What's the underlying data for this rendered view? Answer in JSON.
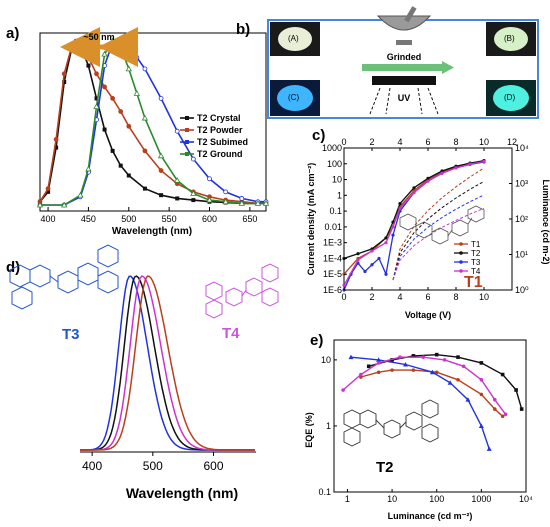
{
  "panels": {
    "a": "a)",
    "b": "b)",
    "c": "c)",
    "d": "d)",
    "e": "e)"
  },
  "colors": {
    "black": "#111111",
    "brown": "#b8401e",
    "blue": "#2233dd",
    "green": "#2a8a2a",
    "magenta": "#cc33cc",
    "orange": "#d9902a",
    "accent_T1": "#b8401e",
    "T3_label": "#2255cc",
    "T4_label": "#cc55dd"
  },
  "panel_b": {
    "labels": [
      "(A)",
      "(B)",
      "(C)",
      "(D)"
    ],
    "grinded": "Grinded",
    "uv": "UV"
  },
  "chart_data": [
    {
      "id": "a",
      "type": "line",
      "xlabel": "Wavelength (nm)",
      "ylabel": "",
      "xlim": [
        390,
        670
      ],
      "xticks": [
        400,
        450,
        500,
        550,
        600,
        650
      ],
      "annotation": "~50 nm",
      "legend_position": "right",
      "series": [
        {
          "name": "T2 Crystal",
          "color": "#111111",
          "x": [
            390,
            400,
            410,
            420,
            430,
            435,
            440,
            450,
            460,
            470,
            480,
            490,
            500,
            520,
            540,
            560,
            580,
            600,
            620,
            640,
            660,
            670
          ],
          "y": [
            0.02,
            0.08,
            0.35,
            0.75,
            0.97,
            1.0,
            0.97,
            0.85,
            0.65,
            0.46,
            0.33,
            0.24,
            0.18,
            0.1,
            0.06,
            0.04,
            0.03,
            0.02,
            0.015,
            0.01,
            0.01,
            0.01
          ]
        },
        {
          "name": "T2 Powder",
          "color": "#b8401e",
          "x": [
            390,
            400,
            410,
            420,
            430,
            435,
            440,
            450,
            460,
            470,
            480,
            490,
            500,
            520,
            540,
            560,
            580,
            600,
            620,
            640,
            660,
            670
          ],
          "y": [
            0.02,
            0.1,
            0.4,
            0.8,
            0.98,
            1.0,
            0.98,
            0.9,
            0.8,
            0.72,
            0.65,
            0.57,
            0.48,
            0.33,
            0.21,
            0.13,
            0.08,
            0.05,
            0.03,
            0.02,
            0.01,
            0.01
          ]
        },
        {
          "name": "T2 Subimed",
          "color": "#2233dd",
          "x": [
            390,
            420,
            440,
            450,
            460,
            470,
            480,
            490,
            500,
            510,
            520,
            540,
            560,
            580,
            600,
            620,
            640,
            660,
            670
          ],
          "y": [
            0.0,
            0.0,
            0.05,
            0.2,
            0.52,
            0.85,
            0.99,
            1.0,
            0.96,
            0.9,
            0.83,
            0.65,
            0.45,
            0.28,
            0.16,
            0.08,
            0.04,
            0.02,
            0.02
          ]
        },
        {
          "name": "T2 Ground",
          "color": "#2a8a2a",
          "x": [
            390,
            420,
            440,
            450,
            460,
            470,
            480,
            490,
            500,
            510,
            520,
            540,
            560,
            580,
            600,
            620,
            640,
            660,
            670
          ],
          "y": [
            0.0,
            0.0,
            0.06,
            0.22,
            0.6,
            0.92,
            1.0,
            0.96,
            0.83,
            0.68,
            0.53,
            0.3,
            0.15,
            0.07,
            0.03,
            0.02,
            0.01,
            0.01,
            0.01
          ]
        }
      ]
    },
    {
      "id": "c",
      "type": "line",
      "xlabel": "Voltage (V)",
      "ylabel": "Current density (mA cm⁻²)",
      "ylabel_right": "Luminance (cd m-2)",
      "xlim": [
        0,
        12
      ],
      "xticks_bottom": [
        0,
        2,
        4,
        6,
        8,
        10
      ],
      "xticks_top": [
        0,
        2,
        4,
        6,
        8,
        10,
        12
      ],
      "yticks_left": [
        "1000",
        "100",
        "10",
        "1",
        "0.1",
        "0.01",
        "1E-3",
        "1E-4",
        "1E-5",
        "1E-6"
      ],
      "yticks_right": [
        "10⁰",
        "10¹",
        "10²",
        "10³",
        "10⁴"
      ],
      "yscale": "log",
      "ylim": [
        1e-06,
        1000
      ],
      "series_label": "T1",
      "legend_position": "right",
      "series": [
        {
          "name": "T1",
          "color": "#b8401e",
          "x": [
            0,
            1,
            2,
            3,
            3.5,
            4,
            5,
            6,
            7,
            8,
            9,
            10
          ],
          "y": [
            1e-05,
            0.0001,
            0.0003,
            0.002,
            0.01,
            0.2,
            2,
            10,
            30,
            60,
            100,
            150
          ]
        },
        {
          "name": "T2",
          "color": "#111111",
          "x": [
            0,
            1,
            2,
            3,
            3.5,
            4,
            5,
            6,
            7,
            8,
            9,
            10
          ],
          "y": [
            0.0001,
            0.0002,
            0.0004,
            0.002,
            0.02,
            0.3,
            3,
            12,
            35,
            70,
            110,
            160
          ]
        },
        {
          "name": "T3",
          "color": "#2233dd",
          "x": [
            0,
            0.5,
            1,
            1.5,
            2,
            2.5,
            3,
            3.5,
            4,
            5,
            6,
            7,
            8,
            9,
            10
          ],
          "y": [
            1e-06,
            1e-05,
            5e-05,
            1.5e-05,
            4e-05,
            0.0001,
            1e-05,
            0.003,
            0.1,
            1.5,
            8,
            25,
            55,
            90,
            130
          ]
        },
        {
          "name": "T4",
          "color": "#cc33cc",
          "x": [
            0,
            1,
            2,
            3,
            3.5,
            4,
            5,
            6,
            7,
            8,
            9,
            10
          ],
          "y": [
            2e-06,
            8e-05,
            0.0003,
            0.001,
            0.01,
            0.15,
            1.5,
            8,
            25,
            55,
            95,
            140
          ]
        }
      ]
    },
    {
      "id": "d",
      "type": "line",
      "xlabel": "Wavelength (nm)",
      "xlim": [
        380,
        670
      ],
      "xticks": [
        400,
        500,
        600
      ],
      "series_labels": [
        "T3",
        "T4"
      ],
      "series": [
        {
          "name": "",
          "color": "#2233dd",
          "peak": 462,
          "width": 40
        },
        {
          "name": "",
          "color": "#111111",
          "peak": 472,
          "width": 42
        },
        {
          "name": "",
          "color": "#cc33cc",
          "peak": 482,
          "width": 43
        },
        {
          "name": "",
          "color": "#b8401e",
          "peak": 492,
          "width": 45
        }
      ]
    },
    {
      "id": "e",
      "type": "line",
      "xlabel": "Luminance (cd m⁻²)",
      "ylabel": "EQE (%)",
      "xscale": "log",
      "yscale": "log",
      "xlim": [
        0.5,
        10000
      ],
      "ylim": [
        0.1,
        20
      ],
      "xticks": [
        "1",
        "10",
        "100",
        "1000",
        "10⁴"
      ],
      "yticks": [
        "10",
        "1",
        "0.1"
      ],
      "series_label": "T2",
      "series": [
        {
          "name": "",
          "color": "#111111",
          "x": [
            3,
            10,
            30,
            100,
            300,
            1000,
            3000,
            6000,
            8000
          ],
          "y": [
            8,
            10,
            11.5,
            12,
            11,
            9,
            6,
            3.5,
            1.8
          ]
        },
        {
          "name": "",
          "color": "#b8401e",
          "x": [
            2,
            5,
            10,
            30,
            100,
            300,
            1000,
            2000,
            3000
          ],
          "y": [
            5.5,
            6.5,
            7,
            7,
            6.5,
            5,
            3,
            1.8,
            1.4
          ]
        },
        {
          "name": "",
          "color": "#2233dd",
          "x": [
            1.2,
            5,
            20,
            80,
            200,
            500,
            1000,
            1500
          ],
          "y": [
            11,
            10,
            8.5,
            6.5,
            4.5,
            2.5,
            1,
            0.45
          ]
        },
        {
          "name": "",
          "color": "#cc33cc",
          "x": [
            0.8,
            2,
            5,
            15,
            50,
            150,
            400,
            1000,
            2000,
            3500
          ],
          "y": [
            3.5,
            6,
            9,
            11,
            11,
            10,
            8,
            5,
            2.5,
            1.5
          ]
        }
      ]
    }
  ]
}
